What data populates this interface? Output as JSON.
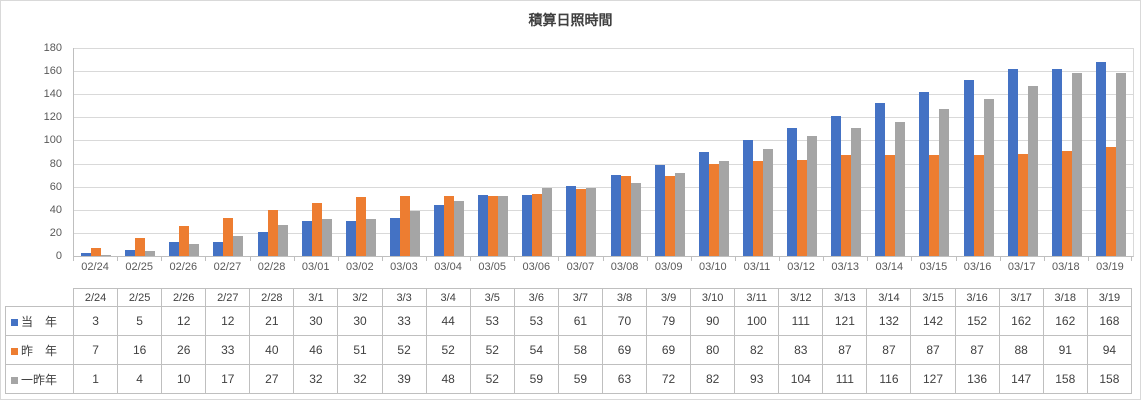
{
  "chart_data": {
    "type": "bar",
    "title": "積算日照時間",
    "xlabel": "",
    "ylabel": "",
    "ylim": [
      0,
      180
    ],
    "ytick_step": 20,
    "grid": true,
    "legend_position": "data-table-left",
    "axis_categories": [
      "02/24",
      "02/25",
      "02/26",
      "02/27",
      "02/28",
      "03/01",
      "03/02",
      "03/03",
      "03/04",
      "03/05",
      "03/06",
      "03/07",
      "03/08",
      "03/09",
      "03/10",
      "03/11",
      "03/12",
      "03/13",
      "03/14",
      "03/15",
      "03/16",
      "03/17",
      "03/18",
      "03/19"
    ],
    "table_categories": [
      "2/24",
      "2/25",
      "2/26",
      "2/27",
      "2/28",
      "3/1",
      "3/2",
      "3/3",
      "3/4",
      "3/5",
      "3/6",
      "3/7",
      "3/8",
      "3/9",
      "3/10",
      "3/11",
      "3/12",
      "3/13",
      "3/14",
      "3/15",
      "3/16",
      "3/17",
      "3/18",
      "3/19"
    ],
    "series": [
      {
        "key": "this-year",
        "name": "当　年",
        "color": "#4472C4",
        "values": [
          3,
          5,
          12,
          12,
          21,
          30,
          30,
          33,
          44,
          53,
          53,
          61,
          70,
          79,
          90,
          100,
          111,
          121,
          132,
          142,
          152,
          162,
          162,
          168
        ]
      },
      {
        "key": "last-year",
        "name": "昨　年",
        "color": "#ED7D31",
        "values": [
          7,
          16,
          26,
          33,
          40,
          46,
          51,
          52,
          52,
          52,
          54,
          58,
          69,
          69,
          80,
          82,
          83,
          87,
          87,
          87,
          87,
          88,
          91,
          94
        ]
      },
      {
        "key": "two-years-ago",
        "name": "一昨年",
        "color": "#A5A5A5",
        "values": [
          1,
          4,
          10,
          17,
          27,
          32,
          32,
          39,
          48,
          52,
          59,
          59,
          63,
          72,
          82,
          93,
          104,
          111,
          116,
          127,
          136,
          147,
          158,
          158
        ]
      }
    ]
  },
  "colors": {
    "grid": "#D9D9D9",
    "axis": "#BFBFBF",
    "table_border": "#BFBFBF",
    "label_text": "#595959",
    "value_text": "#404040"
  }
}
